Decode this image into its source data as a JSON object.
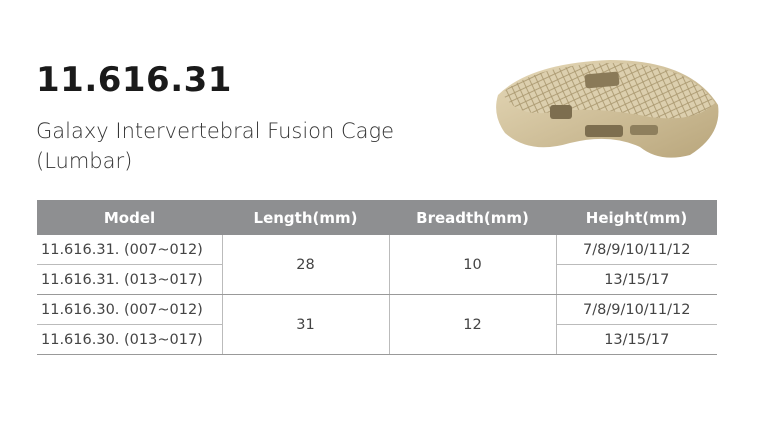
{
  "title": "11.616.31",
  "subtitle_lines": [
    "Galaxy Intervertebral Fusion Cage",
    "(Lumbar)"
  ],
  "product_image": "lumbar-fusion-cage",
  "table": {
    "headers": [
      "Model",
      "Length(mm)",
      "Breadth(mm)",
      "Height(mm)"
    ],
    "groups": [
      {
        "length": "28",
        "breadth": "10",
        "rows": [
          {
            "model": "11.616.31. (007~012)",
            "height": "7/8/9/10/11/12"
          },
          {
            "model": "11.616.31. (013~017)",
            "height": "13/15/17"
          }
        ]
      },
      {
        "length": "31",
        "breadth": "12",
        "rows": [
          {
            "model": "11.616.30. (007~012)",
            "height": "7/8/9/10/11/12"
          },
          {
            "model": "11.616.30. (013~017)",
            "height": "13/15/17"
          }
        ]
      }
    ]
  }
}
